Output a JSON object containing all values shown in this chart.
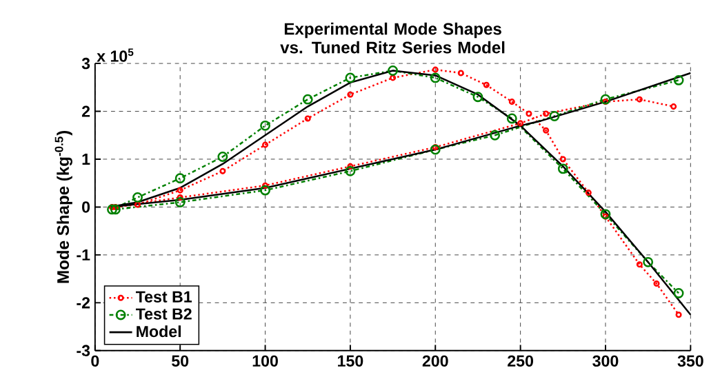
{
  "chart_data": {
    "type": "line",
    "title": "Experimental Mode Shapes vs. Tuned Ritz Series Model",
    "ylabel": "Mode Shape (kg$^{-0.5}$)",
    "annotations": [
      "x 10$^{5}$"
    ],
    "xlim": [
      0,
      350
    ],
    "xticks": [
      0,
      50,
      100,
      150,
      200,
      250,
      300,
      350
    ],
    "ylim": [
      -3,
      3
    ],
    "yticks": [
      -3,
      -2,
      -1,
      0,
      1,
      2,
      3
    ],
    "grid": true,
    "legend": "bottom left",
    "series": [
      {
        "name": "Test B1",
        "color": "#ff0000",
        "marker": "circle",
        "line_style": "dotted",
        "x": [
          10,
          25,
          50,
          75,
          100,
          125,
          150,
          175,
          200,
          215,
          230,
          245,
          255,
          265,
          275,
          290,
          300,
          320,
          330,
          343
        ],
        "values": [
          0,
          0.05,
          0.35,
          0.75,
          1.3,
          1.85,
          2.35,
          2.7,
          2.87,
          2.8,
          2.55,
          2.2,
          1.95,
          1.6,
          1.0,
          0.3,
          -0.2,
          -1.2,
          -1.6,
          -2.25
        ]
      },
      {
        "color": "#ff0000",
        "marker": "circle",
        "line_style": "dotted",
        "x": [
          12,
          50,
          100,
          150,
          200,
          250,
          265,
          300,
          320,
          340
        ],
        "values": [
          0,
          0.2,
          0.45,
          0.85,
          1.25,
          1.75,
          1.95,
          2.2,
          2.25,
          2.1
        ]
      },
      {
        "name": "Test B2",
        "color": "#008000",
        "marker": "circle",
        "line_style": "dashed",
        "x": [
          10,
          25,
          50,
          75,
          100,
          125,
          150,
          175,
          200,
          225,
          245,
          275,
          300,
          325,
          343
        ],
        "values": [
          -0.05,
          0.2,
          0.6,
          1.05,
          1.7,
          2.25,
          2.7,
          2.85,
          2.7,
          2.3,
          1.85,
          0.8,
          -0.15,
          -1.15,
          -1.8
        ]
      },
      {
        "color": "#008000",
        "marker": "circle",
        "line_style": "dashed",
        "x": [
          12,
          50,
          100,
          150,
          200,
          235,
          270,
          300,
          343
        ],
        "values": [
          -0.05,
          0.1,
          0.35,
          0.75,
          1.2,
          1.5,
          1.9,
          2.25,
          2.65
        ]
      },
      {
        "name": "Model",
        "color": "#000000",
        "marker": "none",
        "line_style": "solid",
        "x": [
          8,
          25,
          50,
          75,
          100,
          125,
          150,
          175,
          200,
          225,
          250,
          275,
          300,
          325,
          350
        ],
        "values": [
          0,
          0.1,
          0.4,
          0.9,
          1.5,
          2.1,
          2.6,
          2.85,
          2.75,
          2.35,
          1.7,
          0.85,
          -0.1,
          -1.15,
          -2.25
        ]
      },
      {
        "color": "#000000",
        "marker": "none",
        "line_style": "solid",
        "x": [
          8,
          50,
          100,
          150,
          200,
          250,
          262,
          300,
          350
        ],
        "values": [
          0,
          0.15,
          0.4,
          0.8,
          1.2,
          1.7,
          1.8,
          2.2,
          2.8
        ]
      }
    ]
  }
}
